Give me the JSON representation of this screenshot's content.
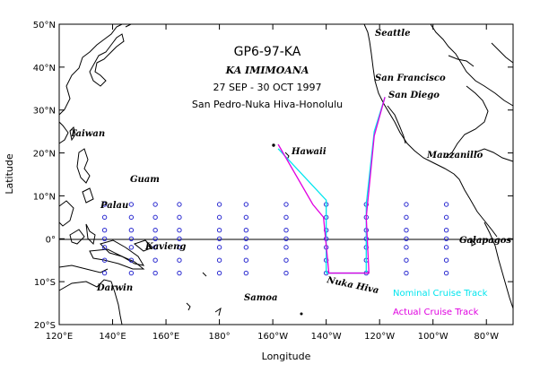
{
  "map": {
    "title": "GP6-97-KA",
    "ship": "KA IMIMOANA",
    "dates": "27 SEP - 30 OCT 1997",
    "route": "San Pedro-Nuka Hiva-Honolulu",
    "xlabel": "Longitude",
    "ylabel": "Latitude",
    "lon_ticks": [
      "120°E",
      "140°E",
      "160°E",
      "180°",
      "160°W",
      "140°W",
      "120°W",
      "100°W",
      "80°W"
    ],
    "lat_ticks": [
      "50°N",
      "40°N",
      "30°N",
      "20°N",
      "10°N",
      "0°",
      "10°S",
      "20°S"
    ],
    "places": {
      "seattle": "Seattle",
      "san_francisco": "San Francisco",
      "san_diego": "San Diego",
      "taiwan": "Taiwan",
      "hawaii": "Hawaii",
      "guam": "Guam",
      "manzanillo": "Manzanillo",
      "palau": "Palau",
      "kavieng": "Kavieng",
      "galapagos": "Galapagos",
      "darwin": "Darwin",
      "samoa": "Samoa",
      "nuka_hiva": "Nuka Hiva"
    },
    "legend": {
      "nominal": "Nominal Cruise Track",
      "actual": "Actual Cruise Track"
    },
    "colors": {
      "nominal": "#00e5ee",
      "actual": "#e000e0",
      "buoy": "#2a2ad0",
      "land": "#000000"
    }
  },
  "chart_data": {
    "type": "scatter",
    "xlim": [
      "120°E",
      "70°W"
    ],
    "ylim": [
      "20°S",
      "50°N"
    ],
    "buoy_longitudes": [
      "137°E",
      "147°E",
      "156°E",
      "165°E",
      "180°",
      "170°W",
      "155°W",
      "140°W",
      "125°W",
      "110°W",
      "95°W"
    ],
    "buoy_latitudes": [
      "8°N",
      "5°N",
      "2°N",
      "0°",
      "2°S",
      "5°S",
      "8°S"
    ],
    "nominal_track": [
      {
        "lon": "118°W",
        "lat": "33°N"
      },
      {
        "lon": "122°W",
        "lat": "25°N"
      },
      {
        "lon": "125°W",
        "lat": "8°N"
      },
      {
        "lon": "125°W",
        "lat": "8°S"
      },
      {
        "lon": "140°W",
        "lat": "8°S"
      },
      {
        "lon": "140°W",
        "lat": "9°N"
      },
      {
        "lon": "152°W",
        "lat": "17°N"
      },
      {
        "lon": "158°W",
        "lat": "21°N"
      }
    ],
    "actual_track": [
      {
        "lon": "118°W",
        "lat": "33°N"
      },
      {
        "lon": "122°W",
        "lat": "24°N"
      },
      {
        "lon": "125°W",
        "lat": "5°N"
      },
      {
        "lon": "124°W",
        "lat": "-8°S"
      },
      {
        "lon": "139°W",
        "lat": "-8°S"
      },
      {
        "lon": "141°W",
        "lat": "5°N"
      },
      {
        "lon": "145°W",
        "lat": "8°N"
      },
      {
        "lon": "158°W",
        "lat": "22°N"
      }
    ]
  }
}
